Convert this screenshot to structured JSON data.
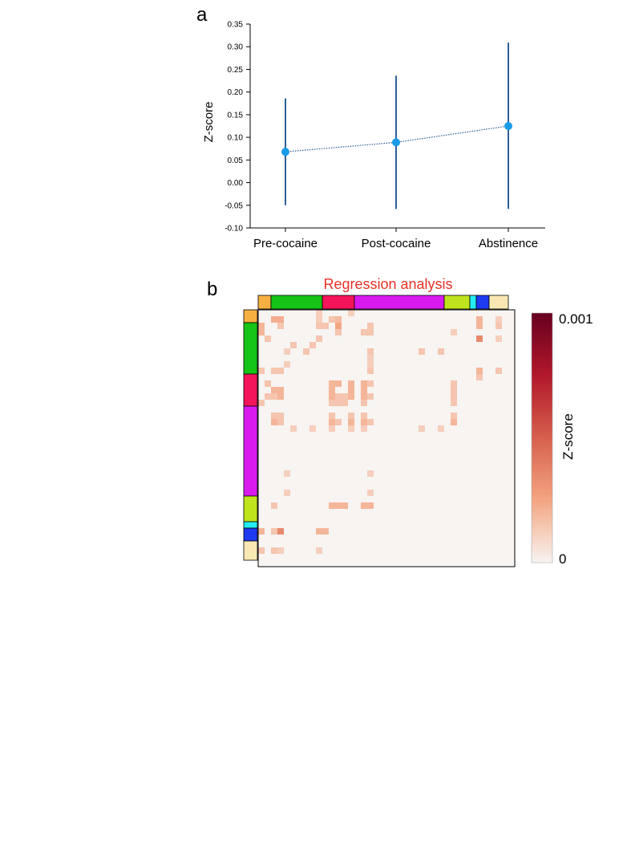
{
  "panel_labels": {
    "a": "a",
    "b": "b"
  },
  "chart_data": [
    {
      "type": "line",
      "title": "",
      "xlabel": "",
      "ylabel": "Z-score",
      "categories": [
        "Pre-cocaine",
        "Post-cocaine",
        "Abstinence"
      ],
      "ylim": [
        -0.1,
        0.35
      ],
      "yticks": [
        "0.35",
        "0.30",
        "0.25",
        "0.20",
        "0.15",
        "0.10",
        "0.05",
        "0.00",
        "-0.05",
        "-0.10"
      ],
      "series": [
        {
          "name": "Z-score",
          "values": [
            0.068,
            0.089,
            0.125
          ],
          "error_low": [
            -0.05,
            -0.058,
            -0.058
          ],
          "error_high": [
            0.186,
            0.236,
            0.309
          ],
          "color": "#1a9be6",
          "errorbar_color": "#2c5f96"
        }
      ]
    },
    {
      "type": "heatmap",
      "title": "Regression analysis",
      "title_color": "#e8312a",
      "size": 40,
      "module_colors": [
        "#f5b041",
        "#15c416",
        "#f4145a",
        "#d91aee",
        "#bde41c",
        "#22eef2",
        "#1e3af0",
        "#f8e8b4"
      ],
      "module_sizes": [
        2,
        8,
        5,
        14,
        4,
        1,
        2,
        3
      ],
      "colorbar": {
        "label": "Z-score",
        "max_label": "0.001",
        "min_label": "0",
        "colors": [
          "#f7f4f2",
          "#f4a582",
          "#d6604d",
          "#b2182b",
          "#67001f"
        ]
      },
      "background_color": "#f7f4f2",
      "cells": [
        [
          0,
          9,
          0.12
        ],
        [
          0,
          14,
          0.12
        ],
        [
          1,
          2,
          0.22
        ],
        [
          1,
          3,
          0.22
        ],
        [
          1,
          9,
          0.12
        ],
        [
          1,
          11,
          0.15
        ],
        [
          1,
          12,
          0.18
        ],
        [
          1,
          34,
          0.2
        ],
        [
          1,
          37,
          0.12
        ],
        [
          2,
          0,
          0.2
        ],
        [
          2,
          3,
          0.15
        ],
        [
          2,
          9,
          0.15
        ],
        [
          2,
          10,
          0.15
        ],
        [
          2,
          12,
          0.25
        ],
        [
          2,
          17,
          0.15
        ],
        [
          2,
          34,
          0.2
        ],
        [
          2,
          37,
          0.15
        ],
        [
          3,
          0,
          0.2
        ],
        [
          3,
          12,
          0.15
        ],
        [
          3,
          16,
          0.15
        ],
        [
          3,
          17,
          0.15
        ],
        [
          3,
          30,
          0.12
        ],
        [
          4,
          1,
          0.15
        ],
        [
          4,
          9,
          0.15
        ],
        [
          4,
          34,
          0.35
        ],
        [
          4,
          37,
          0.12
        ],
        [
          5,
          5,
          0.15
        ],
        [
          5,
          8,
          0.15
        ],
        [
          6,
          4,
          0.12
        ],
        [
          6,
          7,
          0.15
        ],
        [
          6,
          17,
          0.15
        ],
        [
          6,
          25,
          0.15
        ],
        [
          6,
          28,
          0.15
        ],
        [
          7,
          17,
          0.12
        ],
        [
          8,
          4,
          0.12
        ],
        [
          8,
          17,
          0.12
        ],
        [
          9,
          0,
          0.15
        ],
        [
          9,
          2,
          0.15
        ],
        [
          9,
          3,
          0.15
        ],
        [
          9,
          17,
          0.15
        ],
        [
          9,
          34,
          0.2
        ],
        [
          9,
          37,
          0.15
        ],
        [
          10,
          34,
          0.15
        ],
        [
          11,
          1,
          0.15
        ],
        [
          11,
          11,
          0.2
        ],
        [
          11,
          12,
          0.2
        ],
        [
          11,
          14,
          0.2
        ],
        [
          11,
          16,
          0.2
        ],
        [
          11,
          17,
          0.15
        ],
        [
          11,
          30,
          0.15
        ],
        [
          12,
          2,
          0.2
        ],
        [
          12,
          3,
          0.2
        ],
        [
          12,
          11,
          0.2
        ],
        [
          12,
          14,
          0.2
        ],
        [
          12,
          16,
          0.2
        ],
        [
          12,
          30,
          0.15
        ],
        [
          13,
          1,
          0.15
        ],
        [
          13,
          2,
          0.15
        ],
        [
          13,
          3,
          0.2
        ],
        [
          13,
          11,
          0.2
        ],
        [
          13,
          12,
          0.15
        ],
        [
          13,
          13,
          0.15
        ],
        [
          13,
          14,
          0.2
        ],
        [
          13,
          16,
          0.2
        ],
        [
          13,
          17,
          0.15
        ],
        [
          13,
          30,
          0.15
        ],
        [
          14,
          0,
          0.15
        ],
        [
          14,
          11,
          0.15
        ],
        [
          14,
          12,
          0.15
        ],
        [
          14,
          13,
          0.15
        ],
        [
          14,
          16,
          0.15
        ],
        [
          14,
          30,
          0.15
        ],
        [
          16,
          2,
          0.15
        ],
        [
          16,
          3,
          0.15
        ],
        [
          16,
          11,
          0.15
        ],
        [
          16,
          14,
          0.15
        ],
        [
          16,
          16,
          0.15
        ],
        [
          16,
          30,
          0.15
        ],
        [
          17,
          2,
          0.2
        ],
        [
          17,
          3,
          0.15
        ],
        [
          17,
          11,
          0.2
        ],
        [
          17,
          12,
          0.15
        ],
        [
          17,
          14,
          0.2
        ],
        [
          17,
          16,
          0.2
        ],
        [
          17,
          17,
          0.15
        ],
        [
          17,
          30,
          0.2
        ],
        [
          18,
          5,
          0.12
        ],
        [
          18,
          8,
          0.12
        ],
        [
          18,
          11,
          0.12
        ],
        [
          18,
          14,
          0.12
        ],
        [
          18,
          16,
          0.12
        ],
        [
          18,
          25,
          0.12
        ],
        [
          18,
          28,
          0.12
        ],
        [
          25,
          4,
          0.12
        ],
        [
          25,
          17,
          0.12
        ],
        [
          28,
          4,
          0.12
        ],
        [
          28,
          17,
          0.12
        ],
        [
          30,
          2,
          0.15
        ],
        [
          30,
          11,
          0.2
        ],
        [
          30,
          12,
          0.2
        ],
        [
          30,
          13,
          0.2
        ],
        [
          30,
          16,
          0.2
        ],
        [
          30,
          17,
          0.2
        ],
        [
          34,
          0,
          0.2
        ],
        [
          34,
          2,
          0.15
        ],
        [
          34,
          3,
          0.35
        ],
        [
          34,
          9,
          0.2
        ],
        [
          34,
          10,
          0.2
        ],
        [
          37,
          0,
          0.15
        ],
        [
          37,
          2,
          0.15
        ],
        [
          37,
          3,
          0.12
        ],
        [
          37,
          9,
          0.12
        ]
      ]
    }
  ]
}
